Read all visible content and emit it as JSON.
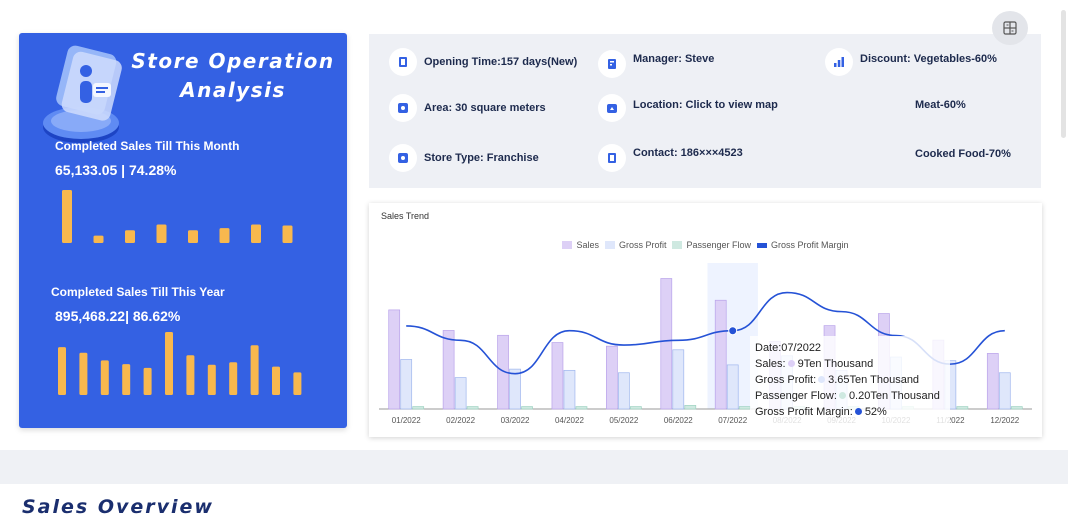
{
  "store_panel": {
    "title_line1": "Store Operation",
    "title_line2": "Analysis",
    "month_label": "Completed Sales Till This Month",
    "month_value": "65,133.05 | 74.28%",
    "month_bars": [
      1.0,
      0.14,
      0.24,
      0.35,
      0.24,
      0.28,
      0.35,
      0.33
    ],
    "year_label": "Completed Sales Till This Year",
    "year_value": "895,468.22| 86.62%",
    "year_bars": [
      0.76,
      0.67,
      0.55,
      0.49,
      0.43,
      1.0,
      0.63,
      0.48,
      0.52,
      0.79,
      0.45,
      0.36
    ],
    "bar_color": "#f8b84e"
  },
  "info": {
    "opening_time": "Opening Time:157 days(New)",
    "area": "Area: 30 square meters",
    "store_type": "Store Type: Franchise",
    "manager": "Manager:  Steve",
    "location": "Location: Click to view map",
    "contact": "Contact:  186×××4523",
    "discount": "Discount:  Vegetables-60%",
    "meat": "Meat-60%",
    "cooked_food": "Cooked Food-70%",
    "icons": [
      "door-icon",
      "square-icon",
      "store-icon",
      "document-icon",
      "location-icon",
      "phone-icon",
      "bar-chart-icon"
    ]
  },
  "section_title": "Sales Overview",
  "chart_data": {
    "type": "bar",
    "title": "Sales Trend",
    "categories": [
      "01/2022",
      "02/2022",
      "03/2022",
      "04/2022",
      "05/2022",
      "06/2022",
      "07/2022",
      "08/2022",
      "09/2022",
      "10/2022",
      "11/2022",
      "12/2022"
    ],
    "series": [
      {
        "name": "Sales",
        "type": "bar",
        "color": "#ddd0f6",
        "values": [
          8.2,
          6.5,
          6.1,
          5.5,
          5.2,
          10.8,
          9.0,
          5.6,
          6.9,
          7.9,
          5.7,
          4.6
        ]
      },
      {
        "name": "Gross Profit",
        "type": "bar",
        "color": "#dfe7fb",
        "values": [
          4.1,
          2.6,
          3.3,
          3.2,
          3.0,
          4.9,
          3.65,
          4.4,
          3.2,
          4.3,
          4.0,
          3.0
        ]
      },
      {
        "name": "Passenger Flow",
        "type": "bar",
        "color": "#cfe9e1",
        "values": [
          0.2,
          0.2,
          0.2,
          0.2,
          0.2,
          0.3,
          0.2,
          0.2,
          0.2,
          0.2,
          0.2,
          0.2
        ]
      },
      {
        "name": "Gross Profit Margin",
        "type": "line",
        "color": "#2552d6",
        "values": [
          53,
          50,
          43,
          52,
          49,
          50,
          52,
          60,
          56,
          51,
          45,
          52
        ]
      }
    ],
    "legend_position": "top-center",
    "ylim": [
      0,
      12
    ],
    "y2lim": [
      0,
      100
    ],
    "highlighted_index": 6,
    "tooltip": {
      "date_label": "Date:07/2022",
      "sales": "Sales:",
      "sales_value": "9Ten Thousand",
      "gross_profit": "Gross Profit:",
      "gross_profit_value": "3.65Ten Thousand",
      "passenger_flow": "Passenger Flow:",
      "passenger_flow_value": "0.20Ten Thousand",
      "margin": "Gross Profit Margin:",
      "margin_value": "52%"
    }
  }
}
